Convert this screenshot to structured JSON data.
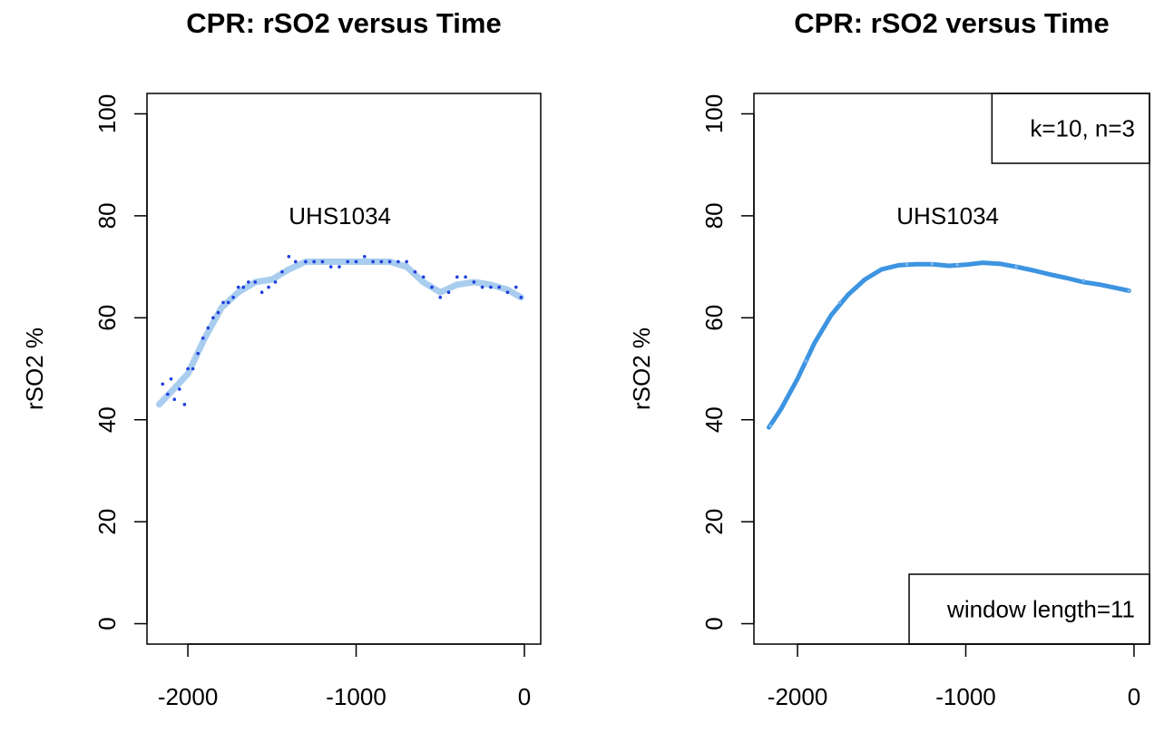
{
  "chart_data": [
    {
      "type": "scatter",
      "title": "CPR: rSO2 versus Time",
      "ylabel": "rSO2 %",
      "xlim": [
        -2243,
        97
      ],
      "ylim": [
        -4,
        104
      ],
      "xticks": [
        -2000,
        -1000,
        0
      ],
      "yticks": [
        0,
        20,
        40,
        60,
        80,
        100
      ],
      "annotations": [
        {
          "text": "UHS1034"
        }
      ],
      "series": [
        {
          "mode": "line",
          "color": "#a9cdee",
          "x": [
            -2170,
            -2000,
            -1900,
            -1800,
            -1700,
            -1600,
            -1500,
            -1400,
            -1300,
            -1200,
            -1100,
            -1000,
            -900,
            -800,
            -700,
            -600,
            -500,
            -400,
            -300,
            -200,
            -100,
            -20
          ],
          "values": [
            43,
            49,
            56,
            62,
            65,
            67,
            67.5,
            69.5,
            71,
            71,
            71,
            71,
            71,
            71,
            70,
            67,
            65,
            66.5,
            67,
            66.5,
            65.5,
            64
          ]
        },
        {
          "mode": "points",
          "color": "#1f3fe0",
          "x": [
            -2150,
            -2120,
            -2100,
            -2080,
            -2050,
            -2020,
            -2000,
            -1970,
            -1940,
            -1910,
            -1880,
            -1850,
            -1820,
            -1790,
            -1760,
            -1730,
            -1700,
            -1670,
            -1640,
            -1600,
            -1560,
            -1520,
            -1480,
            -1440,
            -1400,
            -1360,
            -1300,
            -1250,
            -1200,
            -1150,
            -1100,
            -1050,
            -1000,
            -950,
            -900,
            -850,
            -800,
            -750,
            -700,
            -650,
            -600,
            -550,
            -500,
            -450,
            -400,
            -350,
            -300,
            -250,
            -200,
            -150,
            -100,
            -50,
            -20
          ],
          "values": [
            47,
            45,
            48,
            44,
            46,
            43,
            50,
            50,
            53,
            56,
            58,
            60,
            61,
            63,
            63,
            64,
            66,
            66,
            67,
            67,
            65,
            66,
            67,
            69,
            72,
            71,
            71,
            71,
            71,
            70,
            70,
            71,
            71,
            72,
            71,
            71,
            71,
            71,
            71,
            69,
            68,
            66,
            64,
            65,
            68,
            68,
            67,
            66,
            66,
            66,
            65,
            66,
            64
          ]
        }
      ]
    },
    {
      "type": "scatter",
      "title": "CPR: rSO2 versus Time",
      "ylabel": "rSO2 %",
      "xlim": [
        -2259,
        92
      ],
      "ylim": [
        -4,
        104
      ],
      "xticks": [
        -2000,
        -1000,
        0
      ],
      "yticks": [
        0,
        20,
        40,
        60,
        80,
        100
      ],
      "annotations": [
        {
          "text": "UHS1034"
        }
      ],
      "legends": [
        {
          "text": "k=10, n=3",
          "corner": "topright"
        },
        {
          "text": "window length=11",
          "corner": "bottomright"
        }
      ],
      "series": [
        {
          "mode": "line",
          "color": "#3d94e0",
          "x": [
            -2170,
            -2100,
            -2000,
            -1900,
            -1800,
            -1700,
            -1600,
            -1500,
            -1400,
            -1300,
            -1200,
            -1100,
            -1000,
            -900,
            -800,
            -700,
            -600,
            -500,
            -400,
            -300,
            -200,
            -100,
            -30
          ],
          "values": [
            38.5,
            42,
            48,
            55,
            60.5,
            64.5,
            67.5,
            69.5,
            70.3,
            70.5,
            70.5,
            70.2,
            70.4,
            70.8,
            70.6,
            70,
            69.3,
            68.5,
            67.8,
            67,
            66.5,
            65.8,
            65.3
          ]
        },
        {
          "mode": "points",
          "color": "#7ab4ec",
          "x": [
            -2160,
            -1950,
            -1750,
            -1350,
            -1200,
            -1050,
            -700,
            -300,
            -30
          ],
          "values": [
            38.8,
            51.5,
            63,
            70.5,
            70.6,
            70.4,
            70,
            67.3,
            65.3
          ]
        }
      ]
    }
  ]
}
